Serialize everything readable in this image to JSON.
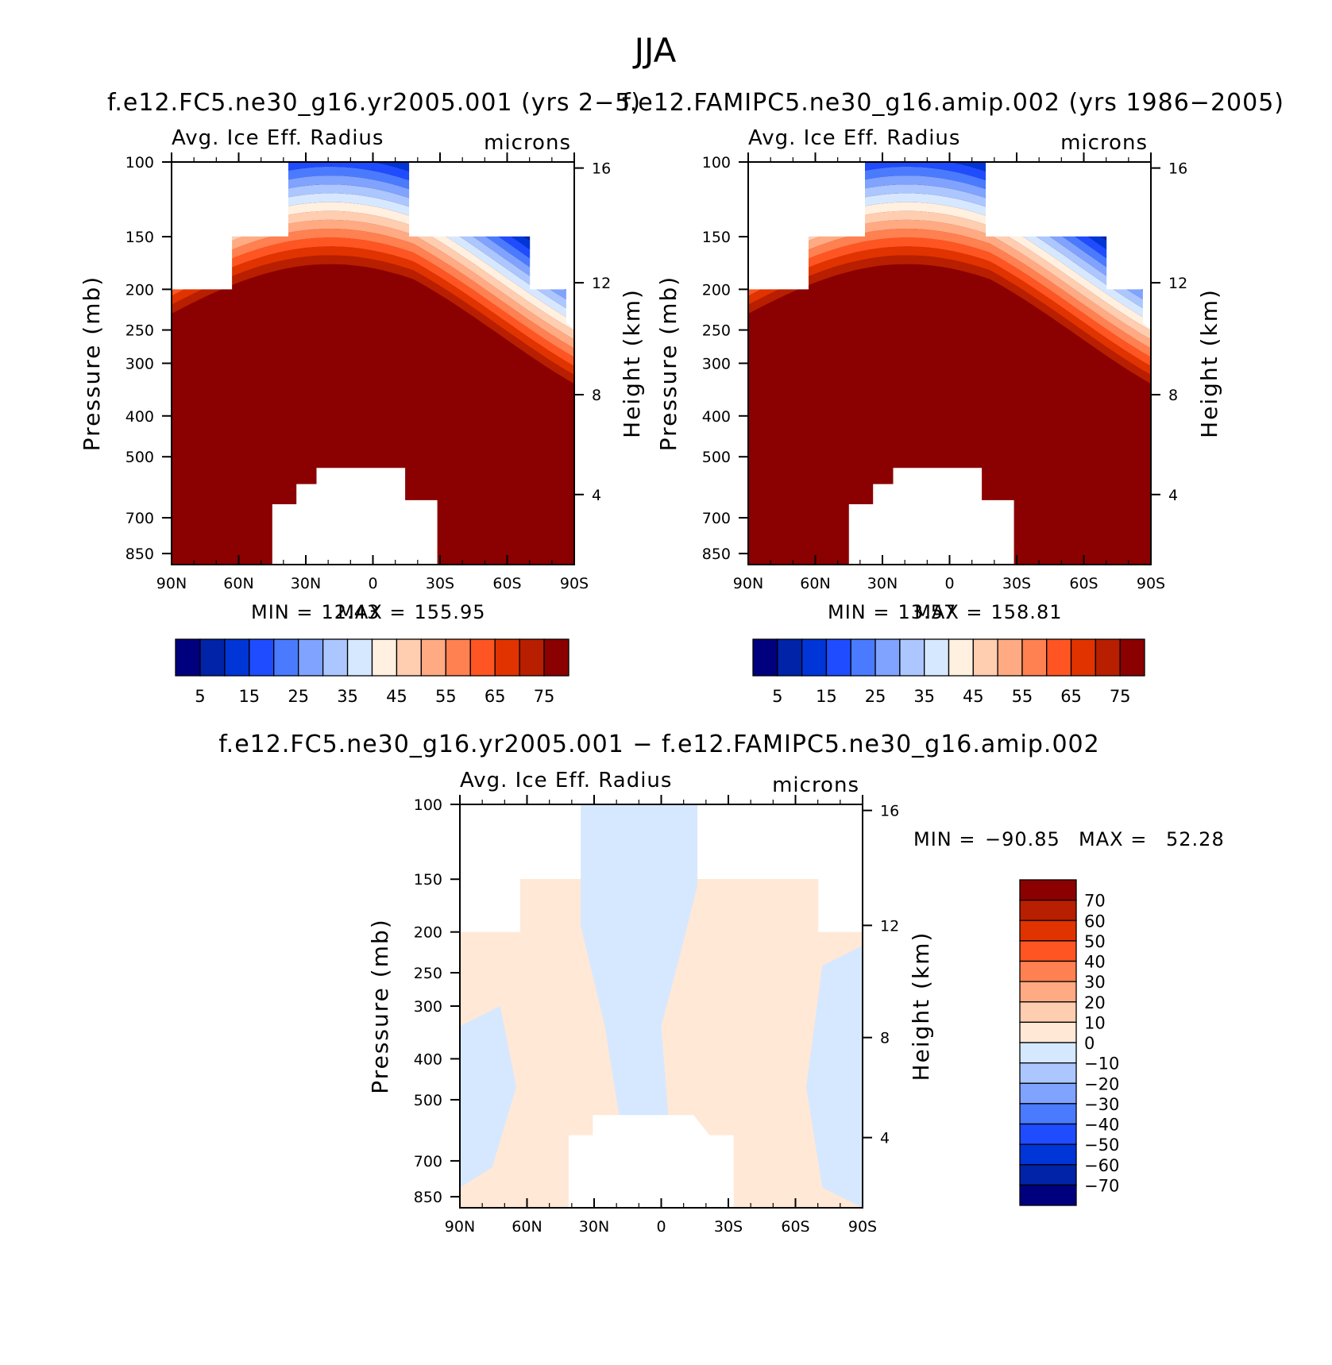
{
  "figure": {
    "title": "JJA",
    "diff_title": "f.e12.FC5.ne30_g16.yr2005.001 − f.e12.FAMIPC5.ne30_g16.amip.002"
  },
  "colors": {
    "abs_scale": [
      "#00007f",
      "#0023a8",
      "#0035d8",
      "#1f4cff",
      "#4a7bff",
      "#7fa3ff",
      "#acc6ff",
      "#d6e8ff",
      "#fff0e0",
      "#ffcdb0",
      "#ffaa82",
      "#ff8050",
      "#ff5522",
      "#e03300",
      "#b81e00",
      "#8b0000"
    ],
    "diff_scale": [
      "#00007f",
      "#0023a8",
      "#0035d8",
      "#1f4cff",
      "#4a7bff",
      "#7fa3ff",
      "#acc6ff",
      "#d6e8ff",
      "#ffe8d6",
      "#ffcdb0",
      "#ffaa82",
      "#ff8050",
      "#ff5522",
      "#e03300",
      "#b81e00",
      "#8b0000"
    ]
  },
  "chart_data": [
    {
      "type": "heatmap",
      "title": "f.e12.FC5.ne30_g16.yr2005.001 (yrs 2−5)",
      "variable": "Avg. Ice Eff. Radius",
      "units": "microns",
      "xlabel": "",
      "ylabel": "Pressure (mb)",
      "y2label": "Height (km)",
      "x_ticklabels": [
        "90N",
        "60N",
        "30N",
        "0",
        "30S",
        "60S",
        "90S"
      ],
      "y_ticklabels": [
        "100",
        "150",
        "200",
        "250",
        "300",
        "400",
        "500",
        "700",
        "850"
      ],
      "y2_ticklabels": [
        "16",
        "12",
        "8",
        "4"
      ],
      "ylim": [
        100,
        1000
      ],
      "y_scale": "log",
      "min": 12.43,
      "max": 155.95,
      "min_label": "MIN =",
      "max_label": "MAX =",
      "min_text": "12.43",
      "max_text": "155.95",
      "colorbar_labels": [
        "5",
        "15",
        "25",
        "35",
        "45",
        "55",
        "65",
        "75"
      ],
      "colorbar_orientation": "horizontal"
    },
    {
      "type": "heatmap",
      "title": "f.e12.FAMIPC5.ne30_g16.amip.002 (yrs 1986−2005)",
      "variable": "Avg. Ice Eff. Radius",
      "units": "microns",
      "xlabel": "",
      "ylabel": "Pressure (mb)",
      "y2label": "Height (km)",
      "x_ticklabels": [
        "90N",
        "60N",
        "30N",
        "0",
        "30S",
        "60S",
        "90S"
      ],
      "y_ticklabels": [
        "100",
        "150",
        "200",
        "250",
        "300",
        "400",
        "500",
        "700",
        "850"
      ],
      "y2_ticklabels": [
        "16",
        "12",
        "8",
        "4"
      ],
      "ylim": [
        100,
        1000
      ],
      "y_scale": "log",
      "min": 13.57,
      "max": 158.81,
      "min_label": "MIN =",
      "max_label": "MAX =",
      "min_text": "13.57",
      "max_text": "158.81",
      "colorbar_labels": [
        "5",
        "15",
        "25",
        "35",
        "45",
        "55",
        "65",
        "75"
      ],
      "colorbar_orientation": "horizontal"
    },
    {
      "type": "heatmap",
      "title": "f.e12.FC5.ne30_g16.yr2005.001 − f.e12.FAMIPC5.ne30_g16.amip.002",
      "variable": "Avg. Ice Eff. Radius",
      "units": "microns",
      "xlabel": "",
      "ylabel": "Pressure (mb)",
      "y2label": "Height (km)",
      "x_ticklabels": [
        "90N",
        "60N",
        "30N",
        "0",
        "30S",
        "60S",
        "90S"
      ],
      "y_ticklabels": [
        "100",
        "150",
        "200",
        "250",
        "300",
        "400",
        "500",
        "700",
        "850"
      ],
      "y2_ticklabels": [
        "16",
        "12",
        "8",
        "4"
      ],
      "ylim": [
        100,
        1000
      ],
      "y_scale": "log",
      "min": -90.85,
      "max": 52.28,
      "min_label": "MIN =",
      "max_label": "MAX =",
      "min_text": "−90.85",
      "max_text": "52.28",
      "colorbar_labels": [
        "70",
        "60",
        "50",
        "40",
        "30",
        "20",
        "10",
        "0",
        "−10",
        "−20",
        "−30",
        "−40",
        "−50",
        "−60",
        "−70"
      ],
      "colorbar_orientation": "vertical"
    }
  ]
}
